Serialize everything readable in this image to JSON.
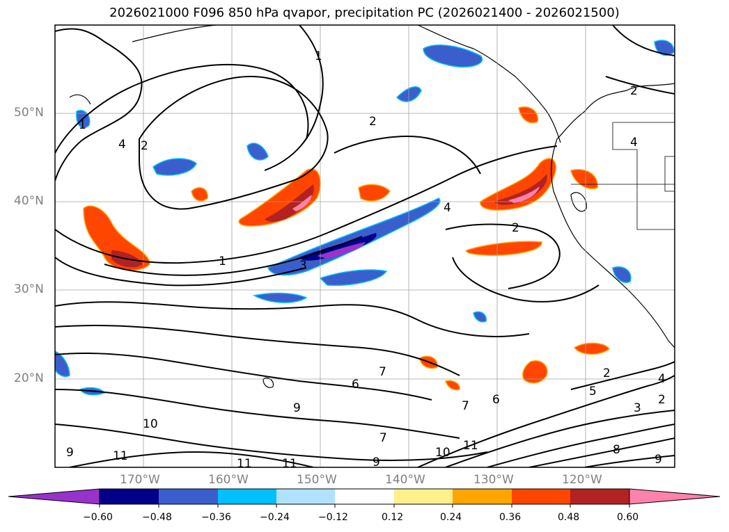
{
  "title": "2026021000 F096 850 hPa qvapor, precipitation PC (2026021400 - 2026021500)",
  "map": {
    "lat_labels": [
      "50°N",
      "40°N",
      "30°N",
      "20°N"
    ],
    "lon_labels": [
      "170°W",
      "160°W",
      "150°W",
      "140°W",
      "130°W",
      "120°W"
    ],
    "contour_labels": [
      "1",
      "2",
      "4",
      "1",
      "2",
      "3",
      "4",
      "2",
      "1",
      "4",
      "2",
      "6",
      "7",
      "9",
      "6",
      "7",
      "10",
      "11",
      "9",
      "11",
      "11",
      "7",
      "10",
      "11",
      "9",
      "2",
      "4",
      "5",
      "3",
      "2",
      "8",
      "9"
    ]
  },
  "colorbar": {
    "ticks": [
      "−0.60",
      "−0.48",
      "−0.36",
      "−0.24",
      "−0.12",
      "0.12",
      "0.24",
      "0.36",
      "0.48",
      "0.60"
    ],
    "colors": [
      "#9932cc",
      "#00008b",
      "#3a5fcd",
      "#00bfff",
      "#b0e2ff",
      "#ffffff",
      "#fff08a",
      "#ffa500",
      "#ff4500",
      "#b22222",
      "#ff82ab",
      "#ff82ab"
    ]
  }
}
